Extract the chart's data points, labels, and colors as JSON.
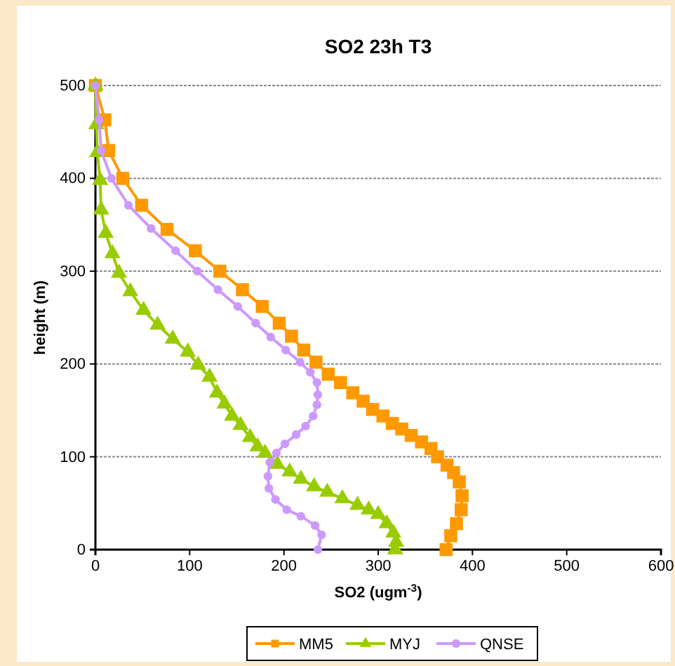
{
  "chart_data": {
    "type": "line",
    "title": "SO2 23h T3",
    "xlabel": "SO2 (ugm$^{-3}$)",
    "ylabel": "height (m)",
    "xlim": [
      0,
      600
    ],
    "xticks": [
      0,
      100,
      200,
      300,
      400,
      500,
      600
    ],
    "ylim": [
      0,
      500
    ],
    "yticks": [
      0,
      100,
      200,
      300,
      400,
      500
    ],
    "grid": "y",
    "legend": "bottom",
    "line_style": "solid",
    "series": [
      {
        "name": "MM5",
        "color": "#ff9900",
        "marker": "square",
        "x": [
          0,
          10,
          14,
          29,
          49,
          76,
          106,
          132,
          156,
          177,
          195,
          208,
          221,
          234,
          247,
          260,
          273,
          284,
          294,
          305,
          315,
          325,
          335,
          346,
          356,
          363,
          373,
          380,
          386,
          389,
          388,
          383,
          377,
          372
        ],
        "values": [
          500,
          463,
          430,
          400,
          371,
          345,
          322,
          300,
          280,
          262,
          244,
          230,
          215,
          202,
          189,
          180,
          169,
          160,
          151,
          144,
          136,
          130,
          123,
          116,
          109,
          100,
          91,
          83,
          73,
          58,
          43,
          28,
          15,
          0
        ]
      },
      {
        "name": "MYJ",
        "color": "#99cc00",
        "marker": "triangle",
        "x": [
          0,
          1,
          2,
          5,
          6,
          11,
          18,
          25,
          37,
          51,
          66,
          82,
          98,
          109,
          121,
          129,
          137,
          145,
          154,
          164,
          172,
          180,
          193,
          206,
          218,
          232,
          246,
          262,
          278,
          290,
          300,
          309,
          316,
          319,
          318
        ],
        "values": [
          500,
          458,
          428,
          398,
          366,
          341,
          319,
          298,
          278,
          258,
          242,
          227,
          213,
          199,
          186,
          169,
          157,
          144,
          134,
          121,
          111,
          104,
          92,
          84,
          76,
          68,
          62,
          55,
          48,
          43,
          38,
          28,
          18,
          8,
          0
        ]
      },
      {
        "name": "QNSE",
        "color": "#cc99ff",
        "marker": "circle",
        "x": [
          0,
          4,
          6,
          17,
          35,
          59,
          85,
          108,
          130,
          151,
          170,
          186,
          202,
          217,
          228,
          235,
          236,
          235,
          231,
          223,
          213,
          201,
          192,
          185,
          183,
          184,
          191,
          203,
          218,
          233,
          240,
          236
        ],
        "values": [
          500,
          463,
          430,
          400,
          371,
          346,
          322,
          300,
          280,
          262,
          244,
          229,
          215,
          202,
          191,
          180,
          167,
          156,
          144,
          133,
          124,
          114,
          104,
          94,
          79,
          66,
          54,
          43,
          36,
          26,
          16,
          0
        ]
      }
    ]
  }
}
